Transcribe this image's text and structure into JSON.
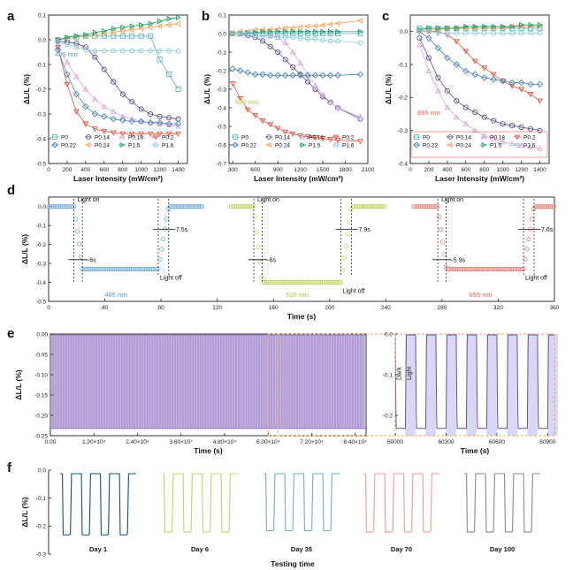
{
  "colors": {
    "P0": "#5db5c6",
    "P0.14": "#5a4c95",
    "P0.18": "#d8a4d8",
    "P0.2": "#e4523c",
    "P0.22": "#4b86b8",
    "P0.24": "#f2a65c",
    "P1.5": "#27a06a",
    "P1.6": "#8ecbe0",
    "blue405": "#7fb4da",
    "green520": "#c3d96d",
    "red655": "#f08a84",
    "purple": "#b69bd3",
    "orange": "#f0a35c",
    "band": "#d9d8f4"
  },
  "chart_data": [
    {
      "id": "a",
      "panel_label": "a",
      "type": "line",
      "xlabel": "Laser Intensity (mW/cm²)",
      "ylabel": "ΔL/L (%)",
      "xlim": [
        0,
        1500
      ],
      "ylim": [
        -0.5,
        0.1
      ],
      "xticks": [
        0,
        200,
        400,
        600,
        800,
        1000,
        1200,
        1400
      ],
      "yticks": [
        0.1,
        0.0,
        -0.1,
        -0.2,
        -0.3,
        -0.4,
        -0.5
      ],
      "annotation": "405 nm",
      "x": [
        100,
        200,
        300,
        400,
        500,
        600,
        700,
        800,
        900,
        1000,
        1100,
        1200,
        1300,
        1400
      ],
      "series": [
        {
          "name": "P0",
          "values": [
            0.0,
            0.005,
            0.01,
            0.015,
            0.015,
            0.015,
            0.015,
            0.015,
            0.015,
            0.015,
            0.015,
            -0.08,
            -0.14,
            -0.2
          ]
        },
        {
          "name": "P0.14",
          "values": [
            -0.005,
            -0.01,
            -0.015,
            -0.03,
            -0.07,
            -0.12,
            -0.17,
            -0.22,
            -0.25,
            -0.28,
            -0.3,
            -0.31,
            -0.315,
            -0.32
          ]
        },
        {
          "name": "P0.18",
          "values": [
            -0.03,
            -0.09,
            -0.15,
            -0.2,
            -0.24,
            -0.27,
            -0.29,
            -0.31,
            -0.32,
            -0.33,
            -0.335,
            -0.34,
            -0.345,
            -0.35
          ]
        },
        {
          "name": "P0.2",
          "values": [
            -0.03,
            -0.18,
            -0.29,
            -0.34,
            -0.36,
            -0.37,
            -0.375,
            -0.38,
            -0.38,
            -0.38,
            -0.38,
            -0.38,
            -0.38,
            -0.38
          ]
        },
        {
          "name": "P0.22",
          "values": [
            -0.04,
            -0.14,
            -0.22,
            -0.27,
            -0.3,
            -0.31,
            -0.32,
            -0.325,
            -0.33,
            -0.33,
            -0.335,
            -0.335,
            -0.34,
            -0.34
          ]
        },
        {
          "name": "P0.24",
          "values": [
            0.0,
            0.005,
            0.01,
            0.015,
            0.02,
            0.025,
            0.03,
            0.035,
            0.04,
            0.045,
            0.05,
            0.055,
            0.06,
            0.065
          ]
        },
        {
          "name": "P1.5",
          "values": [
            0.0,
            0.01,
            0.015,
            0.02,
            0.03,
            0.035,
            0.045,
            0.05,
            0.055,
            0.06,
            0.065,
            0.075,
            0.085,
            0.09
          ]
        },
        {
          "name": "P1.6",
          "values": [
            -0.01,
            -0.02,
            -0.03,
            -0.04,
            -0.045,
            -0.045,
            -0.045,
            -0.045,
            -0.045,
            -0.045,
            -0.045,
            -0.045,
            -0.045,
            -0.045
          ]
        }
      ]
    },
    {
      "id": "b",
      "panel_label": "b",
      "type": "line",
      "xlabel": "Laser Intensity (mW/cm²)",
      "ylabel": "ΔL/L (%)",
      "xlim": [
        250,
        2100
      ],
      "ylim": [
        -0.7,
        0.1
      ],
      "xticks": [
        300,
        600,
        900,
        1200,
        1500,
        1800,
        2100
      ],
      "yticks": [
        0.1,
        0.0,
        -0.1,
        -0.2,
        -0.3,
        -0.4,
        -0.5,
        -0.6,
        -0.7
      ],
      "annotation": "520 nm",
      "x": [
        300,
        400,
        500,
        600,
        700,
        800,
        900,
        1000,
        1100,
        1200,
        1300,
        1400,
        1500,
        1600,
        1700,
        2000
      ],
      "series": [
        {
          "name": "P0",
          "values": [
            0.0,
            0.0,
            0.0,
            0.0,
            0.0,
            0.0,
            0.0,
            0.0,
            0.0,
            0.0,
            0.0,
            0.0,
            0.0,
            0.0,
            0.0,
            0.0
          ]
        },
        {
          "name": "P0.14",
          "values": [
            0.0,
            0.0,
            -0.01,
            -0.02,
            -0.04,
            -0.07,
            -0.1,
            -0.14,
            -0.18,
            -0.22,
            -0.26,
            -0.3,
            -0.34,
            -0.37,
            -0.4,
            -0.46
          ]
        },
        {
          "name": "P0.18",
          "values": [
            0.0,
            0.0,
            0.0,
            0.0,
            0.0,
            -0.01,
            -0.02,
            -0.05,
            -0.1,
            -0.16,
            -0.22,
            -0.28,
            -0.33,
            -0.37,
            -0.4,
            -0.45
          ]
        },
        {
          "name": "P0.2",
          "values": [
            -0.27,
            -0.35,
            -0.41,
            -0.44,
            -0.47,
            -0.49,
            -0.51,
            -0.53,
            -0.54,
            -0.55,
            -0.555,
            -0.56,
            -0.565,
            -0.57,
            -0.575,
            -0.58
          ]
        },
        {
          "name": "P0.22",
          "values": [
            -0.19,
            -0.2,
            -0.21,
            -0.22,
            -0.22,
            -0.225,
            -0.225,
            -0.225,
            -0.225,
            -0.225,
            -0.225,
            -0.225,
            -0.225,
            -0.225,
            -0.225,
            -0.22
          ]
        },
        {
          "name": "P0.24",
          "values": [
            0.0,
            0.01,
            0.01,
            0.02,
            0.02,
            0.02,
            0.025,
            0.03,
            0.03,
            0.035,
            0.04,
            0.04,
            0.045,
            0.05,
            0.055,
            0.07
          ]
        },
        {
          "name": "P1.5",
          "values": [
            0.0,
            0.0,
            0.005,
            0.005,
            0.01,
            0.01,
            0.01,
            0.01,
            0.01,
            0.01,
            0.01,
            0.01,
            0.01,
            0.01,
            0.01,
            0.01
          ]
        },
        {
          "name": "P1.6",
          "values": [
            0.0,
            0.0,
            0.0,
            -0.01,
            -0.01,
            -0.015,
            -0.02,
            -0.02,
            -0.02,
            -0.025,
            -0.03,
            -0.03,
            -0.035,
            -0.04,
            -0.04,
            -0.05
          ]
        }
      ]
    },
    {
      "id": "c",
      "panel_label": "c",
      "type": "line",
      "xlabel": "Laser Intensity (mW/cm²)",
      "ylabel": "ΔL/L (%)",
      "xlim": [
        0,
        1500
      ],
      "ylim": [
        -0.4,
        0.05
      ],
      "xticks": [
        0,
        200,
        400,
        600,
        800,
        1000,
        1200,
        1400
      ],
      "yticks": [
        0.0,
        -0.1,
        -0.2,
        -0.3,
        -0.4
      ],
      "annotation": "655 nm",
      "x": [
        100,
        200,
        300,
        400,
        500,
        600,
        700,
        800,
        900,
        1000,
        1100,
        1200,
        1300,
        1400
      ],
      "series": [
        {
          "name": "P0",
          "values": [
            0.01,
            0.01,
            0.01,
            0.01,
            0.01,
            0.01,
            0.01,
            0.01,
            0.01,
            0.01,
            0.01,
            0.01,
            0.01,
            0.01
          ]
        },
        {
          "name": "P0.14",
          "values": [
            -0.02,
            -0.08,
            -0.14,
            -0.18,
            -0.21,
            -0.23,
            -0.245,
            -0.26,
            -0.27,
            -0.28,
            -0.285,
            -0.29,
            -0.295,
            -0.3
          ]
        },
        {
          "name": "P0.18",
          "values": [
            -0.04,
            -0.12,
            -0.18,
            -0.23,
            -0.26,
            -0.28,
            -0.3,
            -0.315,
            -0.325,
            -0.335,
            -0.34,
            -0.345,
            -0.35,
            -0.355
          ]
        },
        {
          "name": "P0.2",
          "values": [
            0.0,
            0.0,
            0.0,
            -0.01,
            -0.03,
            -0.06,
            -0.09,
            -0.11,
            -0.13,
            -0.15,
            -0.165,
            -0.175,
            -0.19,
            -0.21
          ]
        },
        {
          "name": "P0.22",
          "values": [
            0.0,
            -0.02,
            -0.05,
            -0.08,
            -0.1,
            -0.12,
            -0.13,
            -0.14,
            -0.145,
            -0.15,
            -0.155,
            -0.155,
            -0.16,
            -0.16
          ]
        },
        {
          "name": "P0.24",
          "values": [
            0.0,
            0.005,
            0.005,
            0.01,
            0.01,
            0.01,
            0.01,
            0.01,
            0.01,
            0.01,
            0.015,
            0.015,
            0.015,
            0.015
          ]
        },
        {
          "name": "P1.5",
          "values": [
            0.005,
            0.01,
            0.01,
            0.01,
            0.01,
            0.015,
            0.015,
            0.015,
            0.015,
            0.015,
            0.015,
            0.02,
            0.02,
            0.02
          ]
        },
        {
          "name": "P1.6",
          "values": [
            0.0,
            0.0,
            -0.005,
            -0.005,
            -0.005,
            -0.005,
            -0.005,
            -0.005,
            -0.005,
            -0.005,
            -0.005,
            -0.005,
            -0.005,
            -0.005
          ]
        }
      ]
    },
    {
      "id": "d",
      "panel_label": "d",
      "type": "scatter",
      "xlabel": "Time (s)",
      "ylabel": "ΔL/L (%)",
      "xlim": [
        0,
        360
      ],
      "ylim": [
        -0.5,
        0.05
      ],
      "xticks": [
        0,
        40,
        80,
        120,
        160,
        200,
        240,
        280,
        320,
        360
      ],
      "yticks": [
        0.0,
        -0.1,
        -0.2,
        -0.3,
        -0.4,
        -0.5
      ],
      "segments": [
        {
          "wavelength": "405 nm",
          "on": 18,
          "off": 78,
          "start": 0,
          "end": 110,
          "level": -0.33,
          "rise_label": "~6s",
          "fall_label": "~7.5s",
          "light_on": "Light on",
          "light_off": "Light off"
        },
        {
          "wavelength": "520 nm",
          "on": 146,
          "off": 208,
          "start": 130,
          "end": 240,
          "level": -0.4,
          "rise_label": "~6s",
          "fall_label": "~7.9s",
          "light_on": "Light on",
          "light_off": "Light off"
        },
        {
          "wavelength": "655 nm",
          "on": 277,
          "off": 338,
          "start": 260,
          "end": 360,
          "level": -0.33,
          "rise_label": "~5.9s",
          "fall_label": "~7.6s",
          "light_on": "Light on",
          "light_off": "Light off"
        }
      ]
    },
    {
      "id": "e",
      "panel_label": "e",
      "type": "line",
      "xlabel": "Time (s)",
      "ylabel": "ΔL/L (%)",
      "xlim": [
        0,
        87000
      ],
      "ylim": [
        -0.25,
        0.0
      ],
      "xticks": [
        "0.00",
        "1.20×10⁴",
        "2.40×10⁴",
        "3.60×10⁴",
        "4.80×10⁴",
        "6.00×10⁴",
        "7.20×10⁴",
        "8.40×10⁴"
      ],
      "yticks": [
        "0.00",
        "-0.05",
        "-0.10",
        "-0.15",
        "-0.20",
        "-0.25"
      ],
      "high": 0.0,
      "low": -0.23
    },
    {
      "id": "e_inset",
      "type": "line",
      "xlabel": "Time (s)",
      "xlim": [
        60000,
        60940
      ],
      "ylim": [
        -0.25,
        0.0
      ],
      "xticks": [
        60000,
        60300,
        60600,
        60900
      ],
      "yticks": [
        "0.0",
        "-0.1",
        "-0.2"
      ],
      "period": 120,
      "high": 0.0,
      "low": -0.23,
      "labels": [
        "Dark",
        "Light"
      ]
    },
    {
      "id": "f",
      "panel_label": "f",
      "type": "line",
      "xlabel": "Testing time",
      "ylabel": "ΔL/L (%)",
      "ylim": [
        -0.3,
        0.0
      ],
      "yticks": [
        "0.0",
        "-0.1",
        "-0.2",
        "-0.3"
      ],
      "groups": [
        {
          "name": "Day 1",
          "color": "#0f4e8a",
          "low": -0.225
        },
        {
          "name": "Day 6",
          "color": "#b9d86a",
          "low": -0.215
        },
        {
          "name": "Day 35",
          "color": "#6aaed6",
          "low": -0.21
        },
        {
          "name": "Day 70",
          "color": "#f29b93",
          "low": -0.215
        },
        {
          "name": "Day 100",
          "color": "#8a8a8a",
          "low": -0.215
        }
      ]
    }
  ]
}
